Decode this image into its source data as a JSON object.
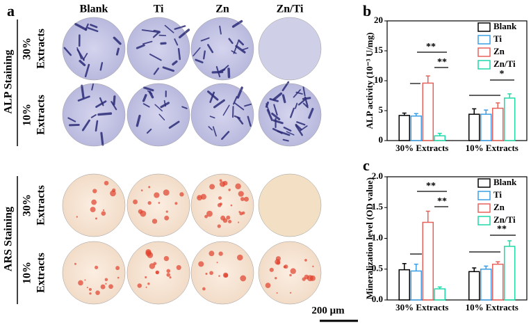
{
  "panel_a": {
    "label": "a",
    "columns": [
      "Blank",
      "Ti",
      "Zn",
      "Zn/Ti"
    ],
    "groups": [
      {
        "label": "ALP Staining",
        "rows": [
          [
            "30%",
            "Extracts"
          ],
          [
            "10%",
            "Extracts"
          ]
        ]
      },
      {
        "label": "ARS Staining",
        "rows": [
          [
            "30%",
            "Extracts"
          ],
          [
            "10%",
            "Extracts"
          ]
        ]
      }
    ],
    "scale_bar": "200 μm"
  },
  "chart_data": [
    {
      "type": "bar",
      "label": "b",
      "y_label": "ALP activity (10⁻³ U/mg)",
      "categories": [
        "30% Extracts",
        "10% Extracts"
      ],
      "series": [
        {
          "name": "Blank",
          "color": "#000000",
          "values": [
            4.2,
            4.4
          ],
          "errors": [
            0.4,
            0.9
          ]
        },
        {
          "name": "Ti",
          "color": "#3a9ee4",
          "values": [
            4.1,
            4.4
          ],
          "errors": [
            0.4,
            0.7
          ]
        },
        {
          "name": "Zn",
          "color": "#e8605a",
          "values": [
            9.6,
            5.4
          ],
          "errors": [
            1.2,
            0.9
          ]
        },
        {
          "name": "Zn/Ti",
          "color": "#1fd9a8",
          "values": [
            0.8,
            7.1
          ],
          "errors": [
            0.4,
            0.7
          ]
        }
      ],
      "ylim": [
        0,
        20
      ],
      "yticks": [
        0,
        5,
        10,
        15,
        20
      ],
      "hollow": true,
      "legend": "upper right",
      "annotations": [
        "**",
        "**",
        "*"
      ]
    },
    {
      "type": "bar",
      "label": "c",
      "y_label": "Mineralization level (OD value)",
      "categories": [
        "30% Extracts",
        "10% Extracts"
      ],
      "series": [
        {
          "name": "Blank",
          "color": "#000000",
          "values": [
            0.49,
            0.46
          ],
          "errors": [
            0.1,
            0.06
          ]
        },
        {
          "name": "Ti",
          "color": "#3a9ee4",
          "values": [
            0.47,
            0.5
          ],
          "errors": [
            0.11,
            0.05
          ]
        },
        {
          "name": "Zn",
          "color": "#e8605a",
          "values": [
            1.26,
            0.58
          ],
          "errors": [
            0.18,
            0.04
          ]
        },
        {
          "name": "Zn/Ti",
          "color": "#1fd9a8",
          "values": [
            0.18,
            0.87
          ],
          "errors": [
            0.03,
            0.09
          ]
        }
      ],
      "ylim": [
        0,
        2
      ],
      "yticks": [
        {
          "value": 0,
          "label": "0.0"
        },
        0.5,
        {
          "value": 1,
          "label": "1.0"
        },
        1.5,
        {
          "value": 2,
          "label": "2.0"
        }
      ],
      "hollow": true,
      "legend": "upper right",
      "annotations": [
        "**",
        "**",
        "**"
      ]
    }
  ]
}
